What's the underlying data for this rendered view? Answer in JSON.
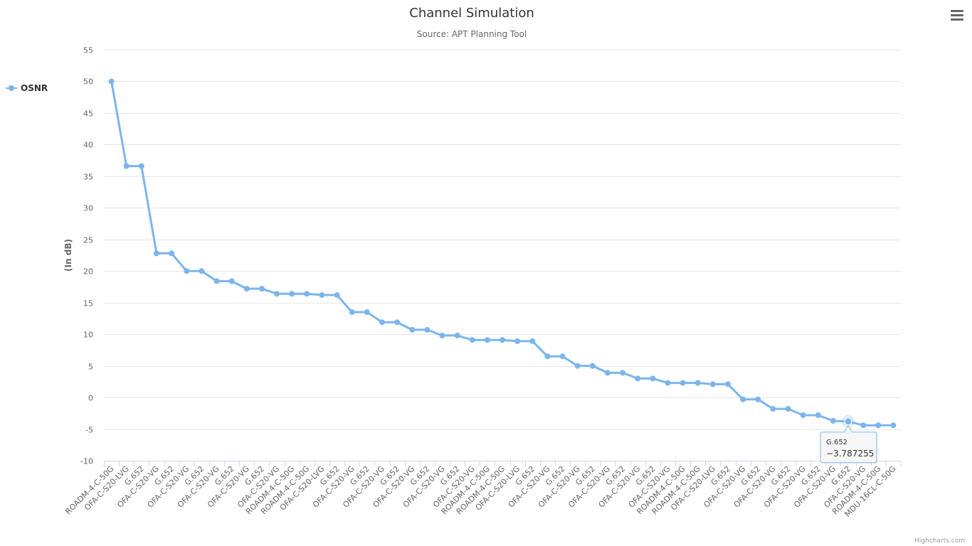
{
  "colors": {
    "series": "#7cb5ec",
    "grid": "#e6e6e6",
    "axis_text": "#666666",
    "title": "#333333"
  },
  "menu": {
    "icon": "hamburger-menu-icon"
  },
  "credits": "Highcharts.com",
  "tooltip": {
    "index": 49,
    "category": "G.652",
    "value": "−3.787255"
  },
  "chart_data": {
    "type": "line",
    "title": "Channel Simulation",
    "subtitle": "Source: APT Planning Tool",
    "ylabel": "(In dB)",
    "ylim": [
      -10,
      55
    ],
    "yticks": [
      -10,
      -5,
      0,
      5,
      10,
      15,
      20,
      25,
      30,
      35,
      40,
      45,
      50,
      55
    ],
    "grid": true,
    "legend_position": "left",
    "categories": [
      "ROADM-4-C-50G",
      "OFA-C-S20-LVG",
      "G.652",
      "OFA-C-S20-VG",
      "G.652",
      "OFA-C-S20-VG",
      "G.652",
      "OFA-C-S20-VG",
      "G.652",
      "OFA-C-S20-VG",
      "G.652",
      "OFA-C-S20-VG",
      "ROADM-4-C-50G",
      "ROADM-4-C-50G",
      "OFA-C-S20-LVG",
      "G.652",
      "OFA-C-S20-VG",
      "G.652",
      "OFA-C-S20-VG",
      "G.652",
      "OFA-C-S20-VG",
      "G.652",
      "OFA-C-S20-VG",
      "G.652",
      "OFA-C-S20-VG",
      "ROADM-4-C-50G",
      "ROADM-4-C-50G",
      "OFA-C-S20-LVG",
      "G.652",
      "OFA-C-S20-VG",
      "G.652",
      "OFA-C-S20-VG",
      "G.652",
      "OFA-C-S20-VG",
      "G.652",
      "OFA-C-S20-VG",
      "G.652",
      "OFA-C-S20-VG",
      "ROADM-4-C-50G",
      "ROADM-4-C-50G",
      "OFA-C-S20-LVG",
      "G.652",
      "OFA-C-S20-VG",
      "G.652",
      "OFA-C-S20-VG",
      "G.652",
      "OFA-C-S20-VG",
      "G.652",
      "OFA-C-S20-VG",
      "G.652",
      "OFA-C-S20-VG",
      "ROADM-4-C-50G",
      "MDU-16CL-C-50G"
    ],
    "series": [
      {
        "name": "OSNR",
        "values": [
          50,
          36.6,
          36.6,
          22.8,
          22.8,
          20.0,
          20.0,
          18.4,
          18.4,
          17.2,
          17.2,
          16.4,
          16.4,
          16.4,
          16.2,
          16.2,
          13.5,
          13.5,
          11.9,
          11.9,
          10.7,
          10.7,
          9.8,
          9.8,
          9.1,
          9.1,
          9.1,
          8.9,
          8.9,
          6.5,
          6.5,
          5.0,
          5.0,
          3.9,
          3.9,
          3.0,
          3.0,
          2.3,
          2.3,
          2.3,
          2.1,
          2.1,
          -0.3,
          -0.3,
          -1.8,
          -1.8,
          -2.8,
          -2.8,
          -3.7,
          -3.787255,
          -4.4,
          -4.4,
          -4.4
        ]
      }
    ]
  }
}
